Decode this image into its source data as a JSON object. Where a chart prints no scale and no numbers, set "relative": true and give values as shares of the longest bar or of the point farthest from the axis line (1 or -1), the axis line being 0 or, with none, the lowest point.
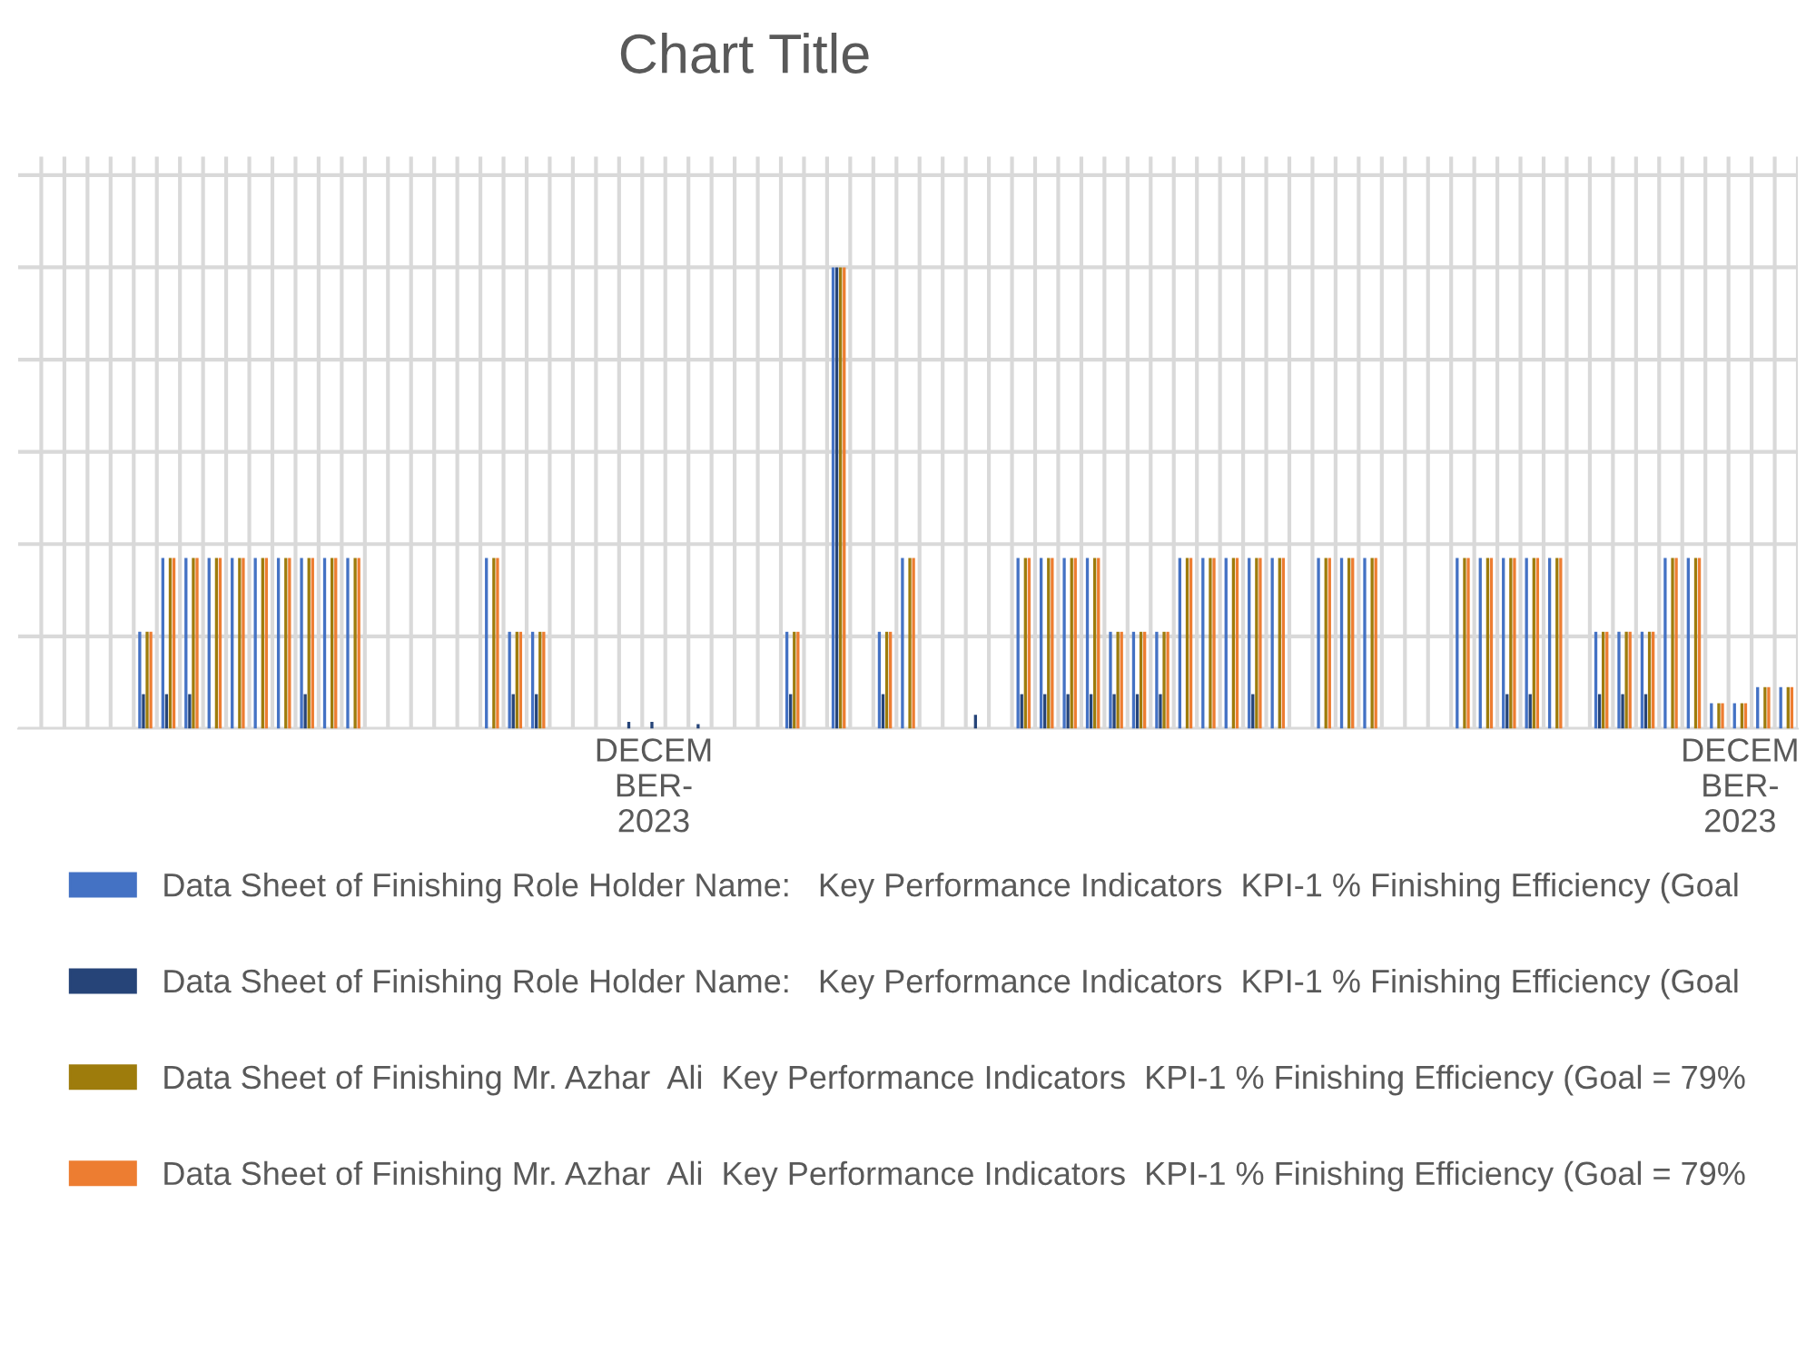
{
  "chart_data": {
    "type": "bar",
    "title": "Chart Title",
    "relative": true,
    "grid": true,
    "legend": "bottom",
    "categories": [
      null,
      null,
      null,
      null,
      null,
      null,
      null,
      null,
      null,
      null,
      null,
      null,
      null,
      null,
      null,
      null,
      null,
      null,
      null,
      null,
      null,
      null,
      null,
      null,
      null,
      null,
      null,
      "DECEM\nBER-\n2023",
      null,
      null,
      null,
      null,
      null,
      null,
      null,
      null,
      null,
      null,
      null,
      null,
      null,
      null,
      null,
      null,
      null,
      null,
      null,
      null,
      null,
      null,
      null,
      null,
      null,
      null,
      null,
      null,
      null,
      null,
      null,
      null,
      null,
      null,
      null,
      null,
      null,
      null,
      null,
      null,
      null,
      null,
      null,
      null,
      null,
      null,
      "DECEM\nBER-\n2023",
      null,
      null
    ],
    "series": [
      {
        "name": "Data Sheet of Finishing Role Holder Name:   Key Performance Indicators  KPI-1 % Finishing Efficiency (Goal",
        "color": "#4472c4",
        "values": [
          0,
          0,
          0,
          0,
          0,
          0.21,
          0.37,
          0.37,
          0.37,
          0.37,
          0.37,
          0.37,
          0.37,
          0.37,
          0.37,
          0,
          0,
          0,
          0,
          0,
          0.37,
          0.21,
          0.21,
          0,
          0,
          0,
          0,
          0,
          0,
          0,
          0,
          0,
          0,
          0.21,
          0,
          1,
          0,
          0.21,
          0.37,
          0,
          0,
          0,
          0,
          0.37,
          0.37,
          0.37,
          0.37,
          0.21,
          0.21,
          0.21,
          0.37,
          0.37,
          0.37,
          0.37,
          0.37,
          0,
          0.37,
          0.37,
          0.37,
          0,
          0,
          0,
          0.37,
          0.37,
          0.37,
          0.37,
          0.37,
          0,
          0.21,
          0.21,
          0.21,
          0.37,
          0.37,
          0.055,
          0.055,
          0.09,
          0.09
        ]
      },
      {
        "name": "Data Sheet of Finishing Role Holder Name:   Key Performance Indicators  KPI-1 % Finishing Efficiency (Goal",
        "color": "#264478",
        "values": [
          0,
          0,
          0,
          0,
          0,
          0.075,
          0.075,
          0.075,
          0,
          0,
          0,
          0,
          0.075,
          0,
          0,
          0,
          0,
          0,
          0,
          0,
          0,
          0.075,
          0.075,
          0,
          0,
          0,
          0.015,
          0.015,
          0,
          0.01,
          0,
          0,
          0,
          0.075,
          0,
          1,
          0,
          0.075,
          0,
          0,
          0,
          0.03,
          0,
          0.075,
          0.075,
          0.075,
          0.075,
          0.075,
          0.075,
          0.075,
          0,
          0,
          0,
          0.075,
          0,
          0,
          0,
          0,
          0,
          0,
          0,
          0,
          0,
          0,
          0.075,
          0.075,
          0,
          0,
          0.075,
          0.075,
          0.075,
          0,
          0,
          0,
          0,
          0,
          0
        ]
      },
      {
        "name": "Data Sheet of Finishing Mr. Azhar  Ali  Key Performance Indicators  KPI-1 % Finishing Efficiency (Goal = 79%",
        "color": "#9e7c0c",
        "values": [
          0,
          0,
          0,
          0,
          0,
          0.21,
          0.37,
          0.37,
          0.37,
          0.37,
          0.37,
          0.37,
          0.37,
          0.37,
          0.37,
          0,
          0,
          0,
          0,
          0,
          0.37,
          0.21,
          0.21,
          0,
          0,
          0,
          0,
          0,
          0,
          0,
          0,
          0,
          0,
          0.21,
          0,
          1,
          0,
          0.21,
          0.37,
          0,
          0,
          0,
          0,
          0.37,
          0.37,
          0.37,
          0.37,
          0.21,
          0.21,
          0.21,
          0.37,
          0.37,
          0.37,
          0.37,
          0.37,
          0,
          0.37,
          0.37,
          0.37,
          0,
          0,
          0,
          0.37,
          0.37,
          0.37,
          0.37,
          0.37,
          0,
          0.21,
          0.21,
          0.21,
          0.37,
          0.37,
          0.055,
          0.055,
          0.09,
          0.09
        ]
      },
      {
        "name": "Data Sheet of Finishing Mr. Azhar  Ali  Key Performance Indicators  KPI-1 % Finishing Efficiency (Goal = 79%",
        "color": "#ed7d31",
        "values": [
          0,
          0,
          0,
          0,
          0,
          0.21,
          0.37,
          0.37,
          0.37,
          0.37,
          0.37,
          0.37,
          0.37,
          0.37,
          0.37,
          0,
          0,
          0,
          0,
          0,
          0.37,
          0.21,
          0.21,
          0,
          0,
          0,
          0,
          0,
          0,
          0,
          0,
          0,
          0,
          0.21,
          0,
          1,
          0,
          0.21,
          0.37,
          0,
          0,
          0,
          0,
          0.37,
          0.37,
          0.37,
          0.37,
          0.21,
          0.21,
          0.21,
          0.37,
          0.37,
          0.37,
          0.37,
          0.37,
          0,
          0.37,
          0.37,
          0.37,
          0,
          0,
          0,
          0.37,
          0.37,
          0.37,
          0.37,
          0.37,
          0,
          0.21,
          0.21,
          0.21,
          0.37,
          0.37,
          0.055,
          0.055,
          0.09,
          0.09
        ]
      }
    ]
  }
}
